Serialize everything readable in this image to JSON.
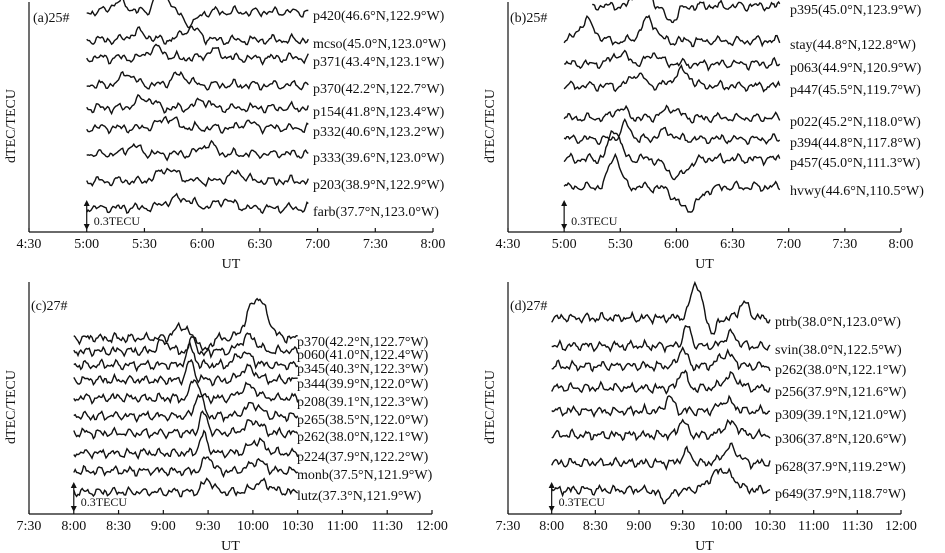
{
  "colors": {
    "ink": "#111111",
    "background": "#ffffff"
  },
  "chart_data": [
    {
      "type": "line",
      "panel_label": "(a)25#",
      "xlabel": "UT",
      "ylabel": "dTEC/TECU",
      "xlim_hours": [
        4.5,
        8.0
      ],
      "x_ticks": [
        "4:30",
        "5:00",
        "5:30",
        "6:00",
        "6:30",
        "7:00",
        "7:30",
        "8:00"
      ],
      "x_tick_hours": [
        4.5,
        5.0,
        5.5,
        6.0,
        6.5,
        7.0,
        7.5,
        8.0
      ],
      "data_start_hour": 5.0,
      "data_end_hour": 6.92,
      "scale_bar": {
        "label": "0.3TECU",
        "value_tecu": 0.3,
        "x_hour": 5.0
      },
      "series": [
        {
          "name": "p420(46.6°N,122.9°W)",
          "disturbance": [
            {
              "t": 5.28,
              "amp": 0.1,
              "w": 0.1
            },
            {
              "t": 5.65,
              "amp": 0.32,
              "w": 0.07
            },
            {
              "t": 5.9,
              "amp": -0.12,
              "w": 0.08
            }
          ]
        },
        {
          "name": "mcso(45.0°N,123.0°W)",
          "disturbance": [
            {
              "t": 5.45,
              "amp": 0.08,
              "w": 0.1
            },
            {
              "t": 5.9,
              "amp": 0.12,
              "w": 0.1
            }
          ]
        },
        {
          "name": "p371(43.4°N,123.1°W)",
          "disturbance": [
            {
              "t": 5.6,
              "amp": 0.1,
              "w": 0.1
            },
            {
              "t": 6.1,
              "amp": 0.08,
              "w": 0.08
            }
          ]
        },
        {
          "name": "p370(42.2°N,122.7°W)",
          "disturbance": [
            {
              "t": 5.35,
              "amp": 0.12,
              "w": 0.08
            },
            {
              "t": 5.8,
              "amp": 0.1,
              "w": 0.1
            }
          ]
        },
        {
          "name": "p154(41.8°N,123.4°W)",
          "disturbance": [
            {
              "t": 5.5,
              "amp": 0.1,
              "w": 0.1
            },
            {
              "t": 6.0,
              "amp": 0.08,
              "w": 0.08
            }
          ]
        },
        {
          "name": "p332(40.6°N,123.2°W)",
          "disturbance": [
            {
              "t": 5.7,
              "amp": 0.1,
              "w": 0.1
            },
            {
              "t": 6.4,
              "amp": 0.06,
              "w": 0.08
            }
          ]
        },
        {
          "name": "p333(39.6°N,123.0°W)",
          "disturbance": [
            {
              "t": 5.4,
              "amp": 0.08,
              "w": 0.08
            },
            {
              "t": 6.05,
              "amp": 0.1,
              "w": 0.08
            }
          ]
        },
        {
          "name": "p203(38.9°N,122.9°W)",
          "disturbance": [
            {
              "t": 5.7,
              "amp": 0.12,
              "w": 0.12
            },
            {
              "t": 6.3,
              "amp": 0.08,
              "w": 0.1
            }
          ]
        },
        {
          "name": "farb(37.7°N,123.0°W)",
          "disturbance": [
            {
              "t": 5.8,
              "amp": 0.1,
              "w": 0.15
            },
            {
              "t": 6.2,
              "amp": 0.08,
              "w": 0.1
            }
          ]
        }
      ]
    },
    {
      "type": "line",
      "panel_label": "(b)25#",
      "xlabel": "UT",
      "ylabel": "dTEC/TECU",
      "xlim_hours": [
        4.5,
        8.0
      ],
      "x_ticks": [
        "4:30",
        "5:00",
        "5:30",
        "6:00",
        "6:30",
        "7:00",
        "7:30",
        "8:00"
      ],
      "x_tick_hours": [
        4.5,
        5.0,
        5.5,
        6.0,
        6.5,
        7.0,
        7.5,
        8.0
      ],
      "data_start_hour": 5.0,
      "data_end_hour": 6.92,
      "scale_bar": {
        "label": "0.3TECU",
        "value_tecu": 0.3,
        "x_hour": 5.0
      },
      "series": [
        {
          "name": "p395(45.0°N,123.9°W)",
          "start_hour": 5.25,
          "disturbance": [
            {
              "t": 5.7,
              "amp": 0.28,
              "w": 0.08
            },
            {
              "t": 5.95,
              "amp": -0.15,
              "w": 0.08
            }
          ]
        },
        {
          "name": "stay(44.8°N,122.8°W)",
          "disturbance": [
            {
              "t": 5.2,
              "amp": 0.2,
              "w": 0.1
            },
            {
              "t": 5.75,
              "amp": 0.22,
              "w": 0.09
            }
          ]
        },
        {
          "name": "p063(44.9°N,120.9°W)",
          "disturbance": [
            {
              "t": 5.5,
              "amp": 0.1,
              "w": 0.1
            },
            {
              "t": 5.8,
              "amp": 0.1,
              "w": 0.08
            }
          ]
        },
        {
          "name": "p447(45.5°N,119.7°W)",
          "disturbance": [
            {
              "t": 5.65,
              "amp": 0.12,
              "w": 0.08
            },
            {
              "t": 6.05,
              "amp": 0.15,
              "w": 0.1
            }
          ]
        },
        {
          "name": "p022(45.2°N,118.0°W)",
          "disturbance": [
            {
              "t": 5.5,
              "amp": 0.1,
              "w": 0.08
            },
            {
              "t": 5.95,
              "amp": 0.1,
              "w": 0.1
            }
          ]
        },
        {
          "name": "p394(44.8°N,117.8°W)",
          "disturbance": [
            {
              "t": 5.55,
              "amp": 0.15,
              "w": 0.06
            },
            {
              "t": 5.9,
              "amp": 0.08,
              "w": 0.08
            }
          ]
        },
        {
          "name": "p457(45.0°N,111.3°W)",
          "disturbance": [
            {
              "t": 5.45,
              "amp": 0.3,
              "w": 0.07
            },
            {
              "t": 6.0,
              "amp": -0.18,
              "w": 0.12
            }
          ]
        },
        {
          "name": "hvwy(44.6°N,110.5°W)",
          "disturbance": [
            {
              "t": 5.45,
              "amp": 0.32,
              "w": 0.07
            },
            {
              "t": 6.1,
              "amp": -0.22,
              "w": 0.14
            }
          ]
        }
      ]
    },
    {
      "type": "line",
      "panel_label": "(c)27#",
      "xlabel": "UT",
      "ylabel": "dTEC/TECU",
      "xlim_hours": [
        7.5,
        12.0
      ],
      "x_ticks": [
        "7:30",
        "8:00",
        "8:30",
        "9:00",
        "9:30",
        "10:00",
        "10:30",
        "11:00",
        "11:30",
        "12:00"
      ],
      "x_tick_hours": [
        7.5,
        8.0,
        8.5,
        9.0,
        9.5,
        10.0,
        10.5,
        11.0,
        11.5,
        12.0
      ],
      "data_start_hour": 8.0,
      "data_end_hour": 10.5,
      "scale_bar": {
        "label": "0.3TECU",
        "value_tecu": 0.3,
        "x_hour": 8.0
      },
      "series": [
        {
          "name": "p370(42.2°N,122.7°W)",
          "disturbance": [
            {
              "t": 9.2,
              "amp": 0.12,
              "w": 0.1
            },
            {
              "t": 9.45,
              "amp": -0.18,
              "w": 0.08
            },
            {
              "t": 10.05,
              "amp": 0.4,
              "w": 0.15
            }
          ]
        },
        {
          "name": "p060(41.0°N,122.4°W)",
          "disturbance": [
            {
              "t": 9.0,
              "amp": 0.1,
              "w": 0.08
            },
            {
              "t": 9.35,
              "amp": 0.15,
              "w": 0.06
            },
            {
              "t": 9.95,
              "amp": 0.15,
              "w": 0.12
            }
          ]
        },
        {
          "name": "p345(40.3°N,122.3°W)",
          "disturbance": [
            {
              "t": 9.3,
              "amp": 0.18,
              "w": 0.06
            },
            {
              "t": 9.9,
              "amp": 0.12,
              "w": 0.12
            }
          ]
        },
        {
          "name": "p344(39.9°N,122.0°W)",
          "disturbance": [
            {
              "t": 9.3,
              "amp": 0.18,
              "w": 0.06
            },
            {
              "t": 9.95,
              "amp": 0.12,
              "w": 0.12
            }
          ]
        },
        {
          "name": "p208(39.1°N,122.3°W)",
          "disturbance": [
            {
              "t": 9.35,
              "amp": 0.2,
              "w": 0.06
            },
            {
              "t": 9.95,
              "amp": 0.12,
              "w": 0.12
            }
          ]
        },
        {
          "name": "p265(38.5°N,122.0°W)",
          "disturbance": [
            {
              "t": 9.4,
              "amp": 0.22,
              "w": 0.06
            },
            {
              "t": 10.0,
              "amp": 0.12,
              "w": 0.12
            }
          ]
        },
        {
          "name": "p262(38.0°N,122.1°W)",
          "disturbance": [
            {
              "t": 9.45,
              "amp": 0.2,
              "w": 0.06
            },
            {
              "t": 10.0,
              "amp": 0.12,
              "w": 0.12
            }
          ]
        },
        {
          "name": "p224(37.9°N,122.2°W)",
          "disturbance": [
            {
              "t": 9.45,
              "amp": 0.18,
              "w": 0.06
            },
            {
              "t": 10.05,
              "amp": 0.12,
              "w": 0.12
            }
          ]
        },
        {
          "name": "monb(37.5°N,121.9°W)",
          "disturbance": [
            {
              "t": 9.5,
              "amp": 0.15,
              "w": 0.07
            },
            {
              "t": 10.05,
              "amp": 0.1,
              "w": 0.12
            }
          ]
        },
        {
          "name": "lutz(37.3°N,121.9°W)",
          "disturbance": [
            {
              "t": 9.5,
              "amp": 0.12,
              "w": 0.08
            },
            {
              "t": 10.1,
              "amp": 0.1,
              "w": 0.12
            }
          ]
        }
      ]
    },
    {
      "type": "line",
      "panel_label": "(d)27#",
      "xlabel": "UT",
      "ylabel": "dTEC/TECU",
      "xlim_hours": [
        7.5,
        12.0
      ],
      "x_ticks": [
        "7:30",
        "8:00",
        "8:30",
        "9:00",
        "9:30",
        "10:00",
        "10:30",
        "11:00",
        "11:30",
        "12:00"
      ],
      "x_tick_hours": [
        7.5,
        8.0,
        8.5,
        9.0,
        9.5,
        10.0,
        10.5,
        11.0,
        11.5,
        12.0
      ],
      "data_start_hour": 8.0,
      "data_end_hour": 10.5,
      "scale_bar": {
        "label": "0.3TECU",
        "value_tecu": 0.3,
        "x_hour": 8.0
      },
      "series": [
        {
          "name": "ptrb(38.0°N,123.0°W)",
          "disturbance": [
            {
              "t": 9.65,
              "amp": 0.35,
              "w": 0.08
            },
            {
              "t": 9.85,
              "amp": -0.15,
              "w": 0.06
            },
            {
              "t": 10.2,
              "amp": 0.15,
              "w": 0.08
            }
          ]
        },
        {
          "name": "svin(38.0°N,122.5°W)",
          "disturbance": [
            {
              "t": 9.55,
              "amp": 0.2,
              "w": 0.06
            },
            {
              "t": 10.05,
              "amp": 0.12,
              "w": 0.1
            }
          ]
        },
        {
          "name": "p262(38.0°N,122.1°W)",
          "disturbance": [
            {
              "t": 9.5,
              "amp": 0.18,
              "w": 0.06
            },
            {
              "t": 10.0,
              "amp": 0.12,
              "w": 0.12
            }
          ]
        },
        {
          "name": "p256(37.9°N,121.6°W)",
          "disturbance": [
            {
              "t": 9.5,
              "amp": 0.18,
              "w": 0.06
            },
            {
              "t": 10.05,
              "amp": 0.12,
              "w": 0.12
            }
          ]
        },
        {
          "name": "p309(39.1°N,121.0°W)",
          "disturbance": [
            {
              "t": 9.35,
              "amp": 0.15,
              "w": 0.06
            },
            {
              "t": 10.0,
              "amp": 0.1,
              "w": 0.12
            }
          ]
        },
        {
          "name": "p306(37.8°N,120.6°W)",
          "disturbance": [
            {
              "t": 9.5,
              "amp": 0.15,
              "w": 0.06
            },
            {
              "t": 10.05,
              "amp": 0.12,
              "w": 0.12
            }
          ]
        },
        {
          "name": "p628(37.9°N,119.2°W)",
          "disturbance": [
            {
              "t": 9.55,
              "amp": 0.12,
              "w": 0.07
            },
            {
              "t": 10.05,
              "amp": 0.15,
              "w": 0.12
            }
          ]
        },
        {
          "name": "p649(37.9°N,118.7°W)",
          "disturbance": [
            {
              "t": 9.3,
              "amp": -0.1,
              "w": 0.1
            },
            {
              "t": 9.95,
              "amp": 0.2,
              "w": 0.18
            }
          ]
        }
      ]
    }
  ]
}
